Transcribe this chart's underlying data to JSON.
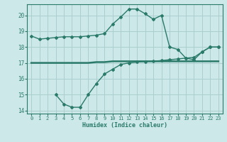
{
  "line1_x": [
    0,
    1,
    2,
    3,
    4,
    5,
    6,
    7,
    8,
    9,
    10,
    11,
    12,
    13,
    14,
    15,
    16,
    17,
    18,
    19,
    20,
    21,
    22,
    23
  ],
  "line1_y": [
    18.7,
    18.5,
    18.55,
    18.6,
    18.65,
    18.65,
    18.65,
    18.7,
    18.75,
    18.85,
    19.45,
    19.9,
    20.4,
    20.4,
    20.1,
    19.75,
    20.0,
    18.0,
    17.85,
    17.3,
    17.2,
    17.7,
    18.0,
    18.0
  ],
  "line2_x": [
    0,
    1,
    2,
    3,
    4,
    5,
    6,
    7,
    8,
    9,
    10,
    11,
    12,
    13,
    14,
    15,
    16,
    17,
    18,
    19,
    20,
    21,
    22,
    23
  ],
  "line2_y": [
    17.0,
    17.0,
    17.0,
    17.0,
    17.0,
    17.0,
    17.0,
    17.0,
    17.05,
    17.05,
    17.1,
    17.1,
    17.1,
    17.1,
    17.1,
    17.1,
    17.1,
    17.1,
    17.1,
    17.1,
    17.1,
    17.1,
    17.1,
    17.1
  ],
  "line3_x": [
    3,
    4,
    5,
    6,
    7,
    8,
    9,
    10,
    11,
    12,
    13,
    14,
    15,
    16,
    17,
    18,
    19,
    20,
    21,
    22,
    23
  ],
  "line3_y": [
    15.0,
    14.4,
    14.2,
    14.2,
    15.0,
    15.7,
    16.3,
    16.6,
    16.9,
    17.0,
    17.05,
    17.08,
    17.1,
    17.15,
    17.2,
    17.25,
    17.3,
    17.35,
    17.7,
    18.0,
    18.0
  ],
  "color": "#2a7a6a",
  "bg_color": "#cce8e8",
  "grid_color": "#aacfcf",
  "xlabel": "Humidex (Indice chaleur)",
  "xlim": [
    -0.5,
    23.5
  ],
  "ylim": [
    13.8,
    20.7
  ],
  "yticks": [
    14,
    15,
    16,
    17,
    18,
    19,
    20
  ],
  "xticks": [
    0,
    1,
    2,
    3,
    4,
    5,
    6,
    7,
    8,
    9,
    10,
    11,
    12,
    13,
    14,
    15,
    16,
    17,
    18,
    19,
    20,
    21,
    22,
    23
  ],
  "marker": "D",
  "markersize": 2.0,
  "linewidth": 1.0,
  "line2_linewidth": 1.8
}
